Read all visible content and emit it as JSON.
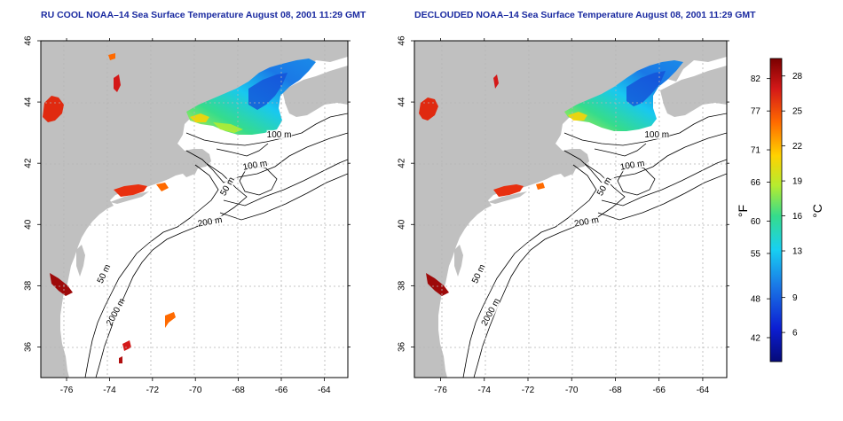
{
  "panels": [
    {
      "id": "left",
      "title": "RU COOL NOAA–14 Sea Surface Temperature August 08, 2001 11:29 GMT",
      "variant": "raw"
    },
    {
      "id": "right",
      "title": "DECLOUDED NOAA–14 Sea Surface Temperature August 08, 2001 11:29 GMT",
      "variant": "declouded"
    }
  ],
  "map_axes": {
    "lon_ticks": [
      -76,
      -74,
      -72,
      -70,
      -68,
      -66,
      -64
    ],
    "lat_ticks": [
      36,
      38,
      40,
      42,
      44,
      46
    ],
    "lon_range": [
      -77.2,
      -62.9
    ],
    "lat_range": [
      35.0,
      46.0
    ]
  },
  "contour_labels": [
    {
      "text": "100 m",
      "lon": -66.1,
      "lat": 42.85,
      "rot": 0
    },
    {
      "text": "100 m",
      "lon": -67.2,
      "lat": 41.85,
      "rot": -10
    },
    {
      "text": "50 m",
      "lon": -68.4,
      "lat": 41.2,
      "rot": -60
    },
    {
      "text": "200 m",
      "lon": -69.3,
      "lat": 40.0,
      "rot": -10
    },
    {
      "text": "50 m",
      "lon": -74.15,
      "lat": 38.35,
      "rot": -65
    },
    {
      "text": "2000 m",
      "lon": -73.6,
      "lat": 37.1,
      "rot": -62
    }
  ],
  "colorbar": {
    "fahrenheit_ticks": [
      82,
      77,
      71,
      66,
      60,
      55,
      48,
      42
    ],
    "celsius_ticks": [
      28,
      25,
      22,
      19,
      16,
      13,
      9,
      6
    ],
    "f_label": "°F",
    "c_label": "°C",
    "c_range": [
      3.5,
      29.5
    ],
    "colors": [
      "#7a0000",
      "#d41818",
      "#ff6a00",
      "#ffd200",
      "#b5ec30",
      "#35dc8c",
      "#18d0f2",
      "#1a78e6",
      "#0c1ed2",
      "#050a78"
    ]
  },
  "colors": {
    "land": "#c0c0c0",
    "ocean": "#ffffff",
    "contour": "#000000",
    "grid": "#b4b4b4",
    "title": "#1a2aa0"
  }
}
